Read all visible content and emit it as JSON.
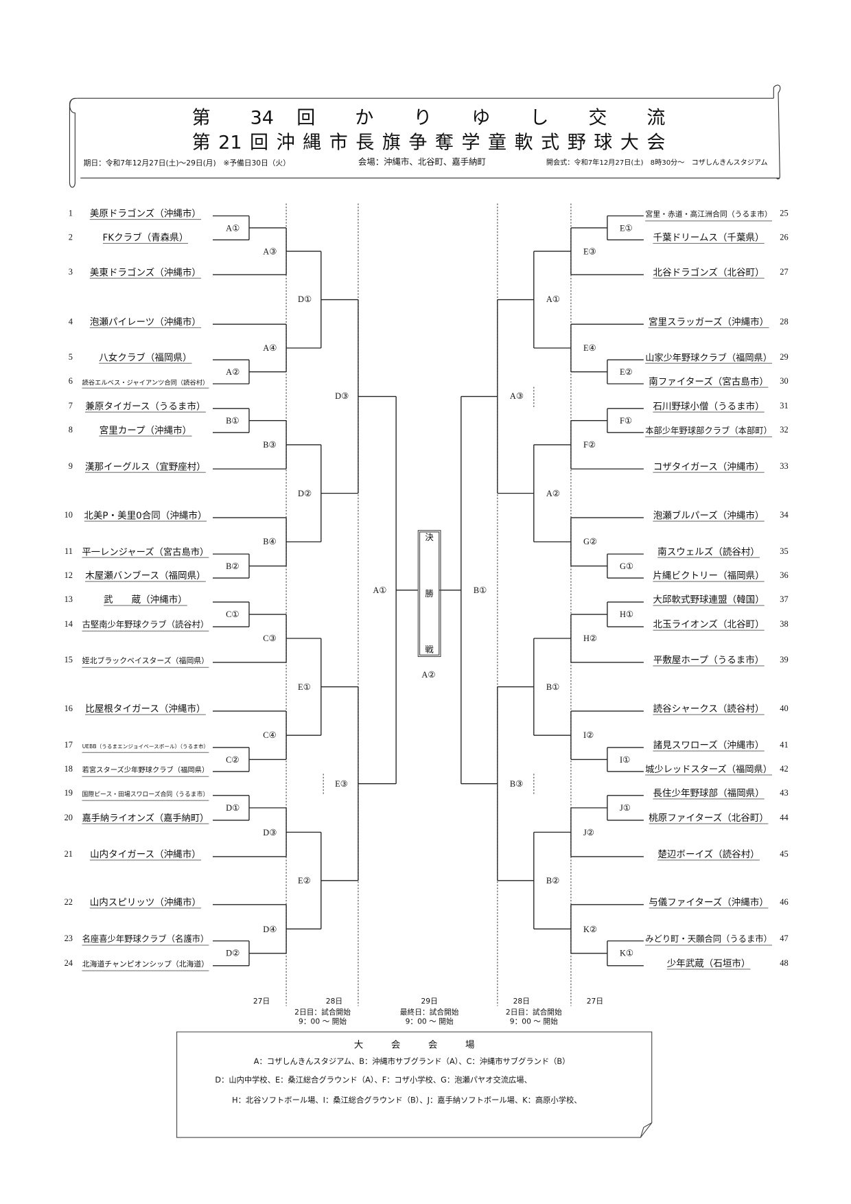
{
  "header": {
    "title_line1": "第 34 回 か り ゆ し 交 流",
    "title_line2": "第21回沖縄市長旗争奪学童軟式野球大会",
    "dates": "期日：令和7年12月27日(土)～29日(月)　※予備日30日（火）",
    "venues": "会場：沖縄市、北谷町、嘉手納町",
    "opening": "開会式：令和7年12月27日(土)　8時30分～　コザしんきんスタジアム"
  },
  "teams_left": [
    {
      "num": "1",
      "name": "美原ドラゴンズ（沖縄市）"
    },
    {
      "num": "2",
      "name": "FKクラブ（青森県）"
    },
    {
      "num": "3",
      "name": "美東ドラゴンズ（沖縄市）"
    },
    {
      "num": "4",
      "name": "泡瀬パイレーツ（沖縄市）"
    },
    {
      "num": "5",
      "name": "八女クラブ（福岡県）"
    },
    {
      "num": "6",
      "name": "読谷エルベス・ジャイアンツ合同（読谷村）"
    },
    {
      "num": "7",
      "name": "兼原タイガース（うるま市）"
    },
    {
      "num": "8",
      "name": "宮里カープ（沖縄市）"
    },
    {
      "num": "9",
      "name": "漢那イーグルス（宜野座村）"
    },
    {
      "num": "10",
      "name": "北美P・美里0合同（沖縄市）"
    },
    {
      "num": "11",
      "name": "平一レンジャーズ（宮古島市）"
    },
    {
      "num": "12",
      "name": "木屋瀬バンブース（福岡県）"
    },
    {
      "num": "13",
      "name": "武　　蔵（沖縄市）"
    },
    {
      "num": "14",
      "name": "古堅南少年野球クラブ（読谷村）"
    },
    {
      "num": "15",
      "name": "姪北ブラックベイスターズ（福岡県）"
    },
    {
      "num": "16",
      "name": "比屋根タイガース（沖縄市）"
    },
    {
      "num": "17",
      "name": "UEBB（うるまエンジョイベースボール）（うるま市）"
    },
    {
      "num": "18",
      "name": "若宮スターズ少年野球クラブ（福岡県）"
    },
    {
      "num": "19",
      "name": "国際ピース・田場スワローズ合同（うるま市）"
    },
    {
      "num": "20",
      "name": "嘉手納ライオンズ（嘉手納町）"
    },
    {
      "num": "21",
      "name": "山内タイガース（沖縄市）"
    },
    {
      "num": "22",
      "name": "山内スピリッツ（沖縄市）"
    },
    {
      "num": "23",
      "name": "名座喜少年野球クラブ（名護市）"
    },
    {
      "num": "24",
      "name": "北海道チャンピオンシップ（北海道）"
    }
  ],
  "teams_right": [
    {
      "num": "25",
      "name": "宮里・赤道・高江洲合同（うるま市）"
    },
    {
      "num": "26",
      "name": "千葉ドリームス（千葉県）"
    },
    {
      "num": "27",
      "name": "北谷ドラゴンズ（北谷町）"
    },
    {
      "num": "28",
      "name": "宮里スラッガーズ（沖縄市）"
    },
    {
      "num": "29",
      "name": "山家少年野球クラブ（福岡県）"
    },
    {
      "num": "30",
      "name": "南ファイターズ（宮古島市）"
    },
    {
      "num": "31",
      "name": "石川野球小僧（うるま市）"
    },
    {
      "num": "32",
      "name": "本部少年野球部クラブ（本部町）"
    },
    {
      "num": "33",
      "name": "コザタイガース（沖縄市）"
    },
    {
      "num": "34",
      "name": "泡瀬ブルパーズ（沖縄市）"
    },
    {
      "num": "35",
      "name": "南スウェルズ（読谷村）"
    },
    {
      "num": "36",
      "name": "片縄ビクトリー（福岡県）"
    },
    {
      "num": "37",
      "name": "大邱軟式野球連盟（韓国）"
    },
    {
      "num": "38",
      "name": "北玉ライオンズ（北谷町）"
    },
    {
      "num": "39",
      "name": "平敷屋ホープ（うるま市）"
    },
    {
      "num": "40",
      "name": "読谷シャークス（読谷村）"
    },
    {
      "num": "41",
      "name": "諸見スワローズ（沖縄市）"
    },
    {
      "num": "42",
      "name": "城少レッドスターズ（福岡県）"
    },
    {
      "num": "43",
      "name": "長住少年野球部（福岡県）"
    },
    {
      "num": "44",
      "name": "桃原ファイターズ（北谷町）"
    },
    {
      "num": "45",
      "name": "楚辺ボーイズ（読谷村）"
    },
    {
      "num": "46",
      "name": "与儀ファイターズ（沖縄市）"
    },
    {
      "num": "47",
      "name": "みどり町・天願合同（うるま市）"
    },
    {
      "num": "48",
      "name": "少年武蔵（石垣市）"
    }
  ],
  "matches_left": [
    "A①",
    "A③",
    "A②",
    "A④",
    "D①",
    "B①",
    "B③",
    "B②",
    "B④",
    "D②",
    "D③",
    "C①",
    "C③",
    "C②",
    "C④",
    "E①",
    "D①",
    "D③",
    "D②",
    "D④",
    "E②",
    "E③",
    "A①"
  ],
  "matches_right": [
    "E①",
    "E③",
    "E②",
    "E④",
    "A①",
    "F①",
    "F②",
    "G①",
    "G②",
    "A②",
    "A③",
    "H①",
    "H②",
    "I①",
    "I②",
    "B①",
    "J①",
    "J②",
    "K①",
    "K②",
    "B②",
    "B③",
    "B①"
  ],
  "final": {
    "chars": [
      "決",
      "勝",
      "戦"
    ],
    "venue": "A②"
  },
  "days": [
    "27日",
    "28日",
    "29日",
    "28日",
    "27日"
  ],
  "notes": [
    {
      "line1": "2日目：試合開始",
      "line2": "9：00 ～ 開始"
    },
    {
      "line1": "最終日：試合開始",
      "line2": "9：00 ～ 開始"
    },
    {
      "line1": "2日目：試合開始",
      "line2": "9：00 ～ 開始"
    }
  ],
  "venue_box": {
    "title": "大　　　会　　　会　　　場",
    "lines": [
      "A：コザしんきんスタジアム、B：沖縄市サブグランド（A）、C：沖縄市サブグランド（B）",
      "D：山内中学校、E：桑江総合グラウンド（A）、F：コザ小学校、G：泡瀬パヤオ交流広場、",
      "H：北谷ソフトボール場、I：桑江総合グラウンド（B）、J：嘉手納ソフトボール場、K：高原小学校、"
    ]
  }
}
